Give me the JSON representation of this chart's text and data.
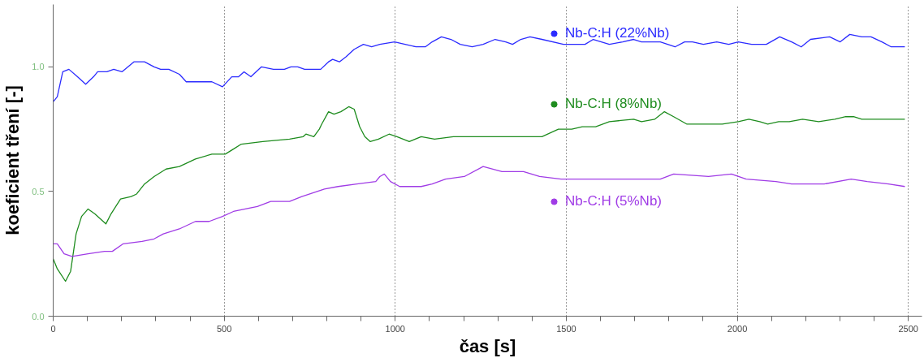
{
  "chart_data": {
    "type": "line",
    "xlabel": "čas [s]",
    "ylabel": "koeficient tření [-]",
    "xlim": [
      0,
      2540
    ],
    "ylim": [
      0,
      1.25
    ],
    "xticks": [
      0,
      {
        "value": 100,
        "label": null
      },
      {
        "value": 200,
        "label": null
      },
      {
        "value": 300,
        "label": null
      },
      {
        "value": 400,
        "label": null
      },
      500,
      {
        "value": 600,
        "label": null
      },
      {
        "value": 700,
        "label": null
      },
      {
        "value": 800,
        "label": null
      },
      {
        "value": 900,
        "label": null
      },
      1000,
      {
        "value": 1100,
        "label": null
      },
      {
        "value": 1200,
        "label": null
      },
      {
        "value": 1300,
        "label": null
      },
      {
        "value": 1400,
        "label": null
      },
      1500,
      {
        "value": 1600,
        "label": null
      },
      {
        "value": 1700,
        "label": null
      },
      {
        "value": 1800,
        "label": null
      },
      {
        "value": 1900,
        "label": null
      },
      2000,
      {
        "value": 2100,
        "label": null
      },
      {
        "value": 2200,
        "label": null
      },
      {
        "value": 2300,
        "label": null
      },
      {
        "value": 2400,
        "label": null
      },
      2500
    ],
    "yticks": [
      {
        "value": 0,
        "label": "0.0"
      },
      {
        "value": 0.5,
        "label": "0.5"
      },
      {
        "value": 1,
        "label": "1.0"
      }
    ],
    "grid": "x",
    "legend": "top right",
    "marker": "none",
    "line_style": "solid",
    "series": [
      {
        "name": "Nb-C:H (22%Nb)",
        "color": "#2b2bff",
        "x": [
          0,
          12,
          28,
          46,
          71,
          95,
          118,
          130,
          157,
          177,
          201,
          236,
          267,
          295,
          314,
          338,
          369,
          389,
          416,
          464,
          495,
          522,
          542,
          558,
          578,
          609,
          644,
          676,
          695,
          715,
          735,
          782,
          805,
          817,
          837,
          856,
          880,
          907,
          931,
          955,
          998,
          1029,
          1061,
          1088,
          1108,
          1135,
          1163,
          1190,
          1225,
          1257,
          1292,
          1323,
          1343,
          1367,
          1394,
          1429,
          1492,
          1516,
          1555,
          1579,
          1626,
          1665,
          1697,
          1720,
          1775,
          1818,
          1846,
          1869,
          1901,
          1940,
          1975,
          2003,
          2042,
          2085,
          2124,
          2159,
          2187,
          2214,
          2270,
          2301,
          2329,
          2364,
          2391,
          2423,
          2450,
          2490
        ],
        "values": [
          0.86,
          0.88,
          0.98,
          0.99,
          0.96,
          0.93,
          0.96,
          0.98,
          0.98,
          0.99,
          0.98,
          1.02,
          1.02,
          1.0,
          0.99,
          0.99,
          0.97,
          0.94,
          0.94,
          0.94,
          0.92,
          0.96,
          0.96,
          0.98,
          0.96,
          1.0,
          0.99,
          0.99,
          1.0,
          1.0,
          0.99,
          0.99,
          1.02,
          1.03,
          1.02,
          1.04,
          1.07,
          1.09,
          1.08,
          1.09,
          1.1,
          1.09,
          1.08,
          1.08,
          1.1,
          1.12,
          1.11,
          1.09,
          1.08,
          1.09,
          1.11,
          1.1,
          1.09,
          1.11,
          1.12,
          1.11,
          1.09,
          1.09,
          1.09,
          1.11,
          1.09,
          1.1,
          1.11,
          1.1,
          1.1,
          1.08,
          1.1,
          1.1,
          1.09,
          1.1,
          1.09,
          1.1,
          1.09,
          1.09,
          1.12,
          1.1,
          1.08,
          1.11,
          1.12,
          1.1,
          1.13,
          1.12,
          1.12,
          1.1,
          1.08,
          1.08
        ]
      },
      {
        "name": "Nb-C:H (8%Nb)",
        "color": "#1e8c1e",
        "x": [
          0,
          12,
          36,
          51,
          67,
          83,
          102,
          122,
          154,
          169,
          197,
          228,
          244,
          267,
          295,
          330,
          369,
          416,
          464,
          503,
          527,
          550,
          613,
          691,
          731,
          739,
          762,
          778,
          785,
          805,
          821,
          841,
          864,
          880,
          896,
          911,
          927,
          951,
          982,
          1005,
          1041,
          1076,
          1115,
          1170,
          1225,
          1273,
          1312,
          1359,
          1429,
          1477,
          1516,
          1547,
          1586,
          1626,
          1697,
          1720,
          1759,
          1787,
          1814,
          1853,
          1909,
          1956,
          2003,
          2034,
          2066,
          2089,
          2121,
          2152,
          2191,
          2238,
          2285,
          2317,
          2340,
          2364,
          2411,
          2490
        ],
        "values": [
          0.23,
          0.19,
          0.14,
          0.18,
          0.33,
          0.4,
          0.43,
          0.41,
          0.37,
          0.41,
          0.47,
          0.48,
          0.49,
          0.53,
          0.56,
          0.59,
          0.6,
          0.63,
          0.65,
          0.65,
          0.67,
          0.69,
          0.7,
          0.71,
          0.72,
          0.73,
          0.72,
          0.75,
          0.77,
          0.82,
          0.81,
          0.82,
          0.84,
          0.83,
          0.76,
          0.72,
          0.7,
          0.71,
          0.73,
          0.72,
          0.7,
          0.72,
          0.71,
          0.72,
          0.72,
          0.72,
          0.72,
          0.72,
          0.72,
          0.75,
          0.75,
          0.76,
          0.76,
          0.78,
          0.79,
          0.78,
          0.79,
          0.82,
          0.8,
          0.77,
          0.77,
          0.77,
          0.78,
          0.79,
          0.78,
          0.77,
          0.78,
          0.78,
          0.79,
          0.78,
          0.79,
          0.8,
          0.8,
          0.79,
          0.79,
          0.79
        ]
      },
      {
        "name": "Nb-C:H (5%Nb)",
        "color": "#a03ce6",
        "x": [
          0,
          12,
          32,
          55,
          102,
          150,
          173,
          204,
          260,
          295,
          322,
          369,
          416,
          456,
          495,
          527,
          597,
          636,
          691,
          727,
          793,
          833,
          888,
          943,
          955,
          968,
          986,
          1013,
          1076,
          1108,
          1147,
          1202,
          1257,
          1312,
          1375,
          1422,
          1485,
          1532,
          1579,
          1610,
          1697,
          1775,
          1814,
          1916,
          1983,
          2026,
          2113,
          2159,
          2254,
          2333,
          2380,
          2442,
          2490
        ],
        "values": [
          0.29,
          0.29,
          0.25,
          0.24,
          0.25,
          0.26,
          0.26,
          0.29,
          0.3,
          0.31,
          0.33,
          0.35,
          0.38,
          0.38,
          0.4,
          0.42,
          0.44,
          0.46,
          0.46,
          0.48,
          0.51,
          0.52,
          0.53,
          0.54,
          0.56,
          0.57,
          0.54,
          0.52,
          0.52,
          0.53,
          0.55,
          0.56,
          0.6,
          0.58,
          0.58,
          0.56,
          0.55,
          0.55,
          0.55,
          0.55,
          0.55,
          0.55,
          0.57,
          0.56,
          0.57,
          0.55,
          0.54,
          0.53,
          0.53,
          0.55,
          0.54,
          0.53,
          0.52
        ]
      }
    ]
  }
}
